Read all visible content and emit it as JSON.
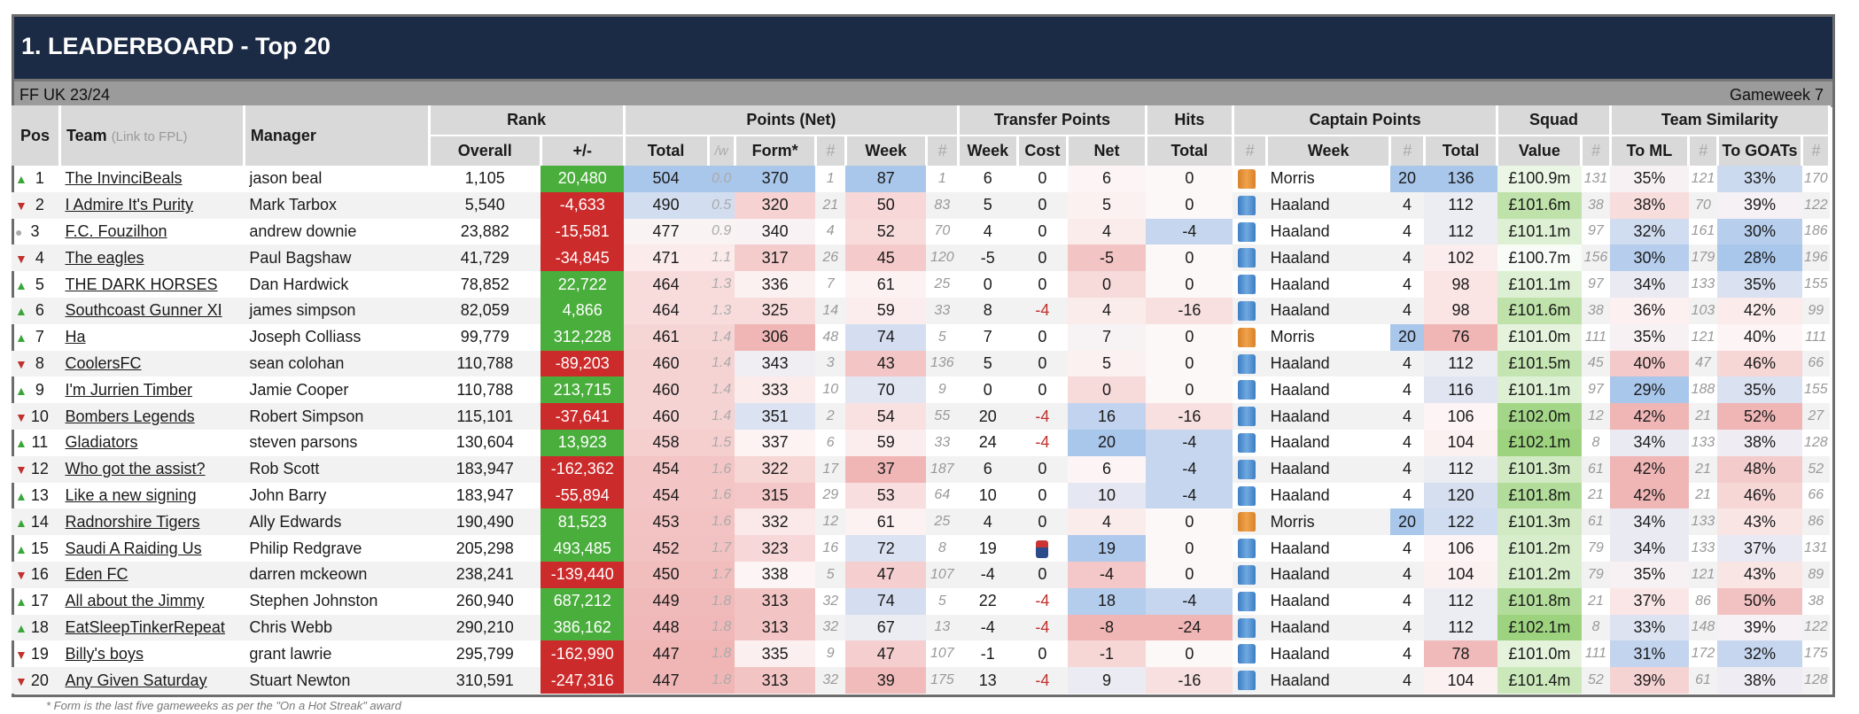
{
  "title": "1. LEADERBOARD - Top 20",
  "season": "FF UK 23/24",
  "gameweek": "Gameweek 7",
  "footnote": "* Form is the last five gameweeks as per the \"On a Hot Streak\" award",
  "headers": {
    "pos": "Pos",
    "team": "Team",
    "team_hint": "(Link to FPL)",
    "manager": "Manager",
    "rank": "Rank",
    "rank_overall": "Overall",
    "rank_change": "+/-",
    "points": "Points (Net)",
    "points_total": "Total",
    "points_pw": "/w",
    "points_form": "Form*",
    "hash": "#",
    "points_week": "Week",
    "transfer": "Transfer Points",
    "transfer_week": "Week",
    "transfer_cost": "Cost",
    "transfer_net": "Net",
    "hits": "Hits",
    "hits_total": "Total",
    "captain": "Captain Points",
    "captain_week": "Week",
    "captain_total": "Total",
    "squad": "Squad",
    "squad_value": "Value",
    "similarity": "Team Similarity",
    "sim_ml": "To ML",
    "sim_goats": "To GOATs"
  },
  "colors": {
    "title_bg": "#1c2b45",
    "rank_up": "#4aae3c",
    "rank_down": "#cc2b2b",
    "blue_high": "#a9c6eb",
    "red_high": "#f0b6b6"
  },
  "rows": [
    {
      "pos": "1",
      "dir": "up",
      "team": "The InvinciBeals",
      "manager": "jason beal",
      "overall": "1,105",
      "change": "20,480",
      "total": "504",
      "pw": "0.0",
      "form": "370",
      "form_rank": "1",
      "week": "87",
      "week_rank": "1",
      "t_week": "6",
      "t_cost": "0",
      "t_net": "6",
      "hits": "0",
      "cap_shirt": "orange",
      "cap": "Morris",
      "cap_week": "20",
      "cap_total": "136",
      "value": "£100.9m",
      "value_rank": "131",
      "ml": "35%",
      "ml_rank": "121",
      "goats": "33%",
      "goats_rank": "170"
    },
    {
      "pos": "2",
      "dir": "down",
      "team": "I Admire It's Purity",
      "manager": "Mark Tarbox",
      "overall": "5,540",
      "change": "-4,633",
      "total": "490",
      "pw": "0.5",
      "form": "320",
      "form_rank": "21",
      "week": "50",
      "week_rank": "83",
      "t_week": "5",
      "t_cost": "0",
      "t_net": "5",
      "hits": "0",
      "cap_shirt": "blue",
      "cap": "Haaland",
      "cap_week": "4",
      "cap_total": "112",
      "value": "£101.6m",
      "value_rank": "38",
      "ml": "38%",
      "ml_rank": "70",
      "goats": "39%",
      "goats_rank": "122"
    },
    {
      "pos": "3",
      "dir": "same",
      "team": "F.C. Fouzilhon",
      "manager": "andrew downie",
      "overall": "23,882",
      "change": "-15,581",
      "total": "477",
      "pw": "0.9",
      "form": "340",
      "form_rank": "4",
      "week": "52",
      "week_rank": "70",
      "t_week": "4",
      "t_cost": "0",
      "t_net": "4",
      "hits": "-4",
      "cap_shirt": "blue",
      "cap": "Haaland",
      "cap_week": "4",
      "cap_total": "112",
      "value": "£101.1m",
      "value_rank": "97",
      "ml": "32%",
      "ml_rank": "161",
      "goats": "30%",
      "goats_rank": "186"
    },
    {
      "pos": "4",
      "dir": "down",
      "team": "The eagles",
      "manager": "Paul Bagshaw",
      "overall": "41,729",
      "change": "-34,845",
      "total": "471",
      "pw": "1.1",
      "form": "317",
      "form_rank": "26",
      "week": "45",
      "week_rank": "120",
      "t_week": "-5",
      "t_cost": "0",
      "t_net": "-5",
      "hits": "0",
      "cap_shirt": "blue",
      "cap": "Haaland",
      "cap_week": "4",
      "cap_total": "102",
      "value": "£100.7m",
      "value_rank": "156",
      "ml": "30%",
      "ml_rank": "179",
      "goats": "28%",
      "goats_rank": "196"
    },
    {
      "pos": "5",
      "dir": "up",
      "team": "THE DARK HORSES",
      "manager": "Dan Hardwick",
      "overall": "78,852",
      "change": "22,722",
      "total": "464",
      "pw": "1.3",
      "form": "336",
      "form_rank": "7",
      "week": "61",
      "week_rank": "25",
      "t_week": "0",
      "t_cost": "0",
      "t_net": "0",
      "hits": "0",
      "cap_shirt": "blue",
      "cap": "Haaland",
      "cap_week": "4",
      "cap_total": "98",
      "value": "£101.1m",
      "value_rank": "97",
      "ml": "34%",
      "ml_rank": "133",
      "goats": "35%",
      "goats_rank": "155"
    },
    {
      "pos": "6",
      "dir": "up",
      "team": "Southcoast Gunner XI",
      "manager": "james simpson",
      "overall": "82,059",
      "change": "4,866",
      "total": "464",
      "pw": "1.3",
      "form": "325",
      "form_rank": "14",
      "week": "59",
      "week_rank": "33",
      "t_week": "8",
      "t_cost": "-4",
      "t_net": "4",
      "hits": "-16",
      "cap_shirt": "blue",
      "cap": "Haaland",
      "cap_week": "4",
      "cap_total": "98",
      "value": "£101.6m",
      "value_rank": "38",
      "ml": "36%",
      "ml_rank": "103",
      "goats": "42%",
      "goats_rank": "99"
    },
    {
      "pos": "7",
      "dir": "up",
      "team": "Ha",
      "manager": "Joseph Colliass",
      "overall": "99,779",
      "change": "312,228",
      "total": "461",
      "pw": "1.4",
      "form": "306",
      "form_rank": "48",
      "week": "74",
      "week_rank": "5",
      "t_week": "7",
      "t_cost": "0",
      "t_net": "7",
      "hits": "0",
      "cap_shirt": "orange",
      "cap": "Morris",
      "cap_week": "20",
      "cap_total": "76",
      "value": "£101.0m",
      "value_rank": "111",
      "ml": "35%",
      "ml_rank": "121",
      "goats": "40%",
      "goats_rank": "111"
    },
    {
      "pos": "8",
      "dir": "down",
      "team": "CoolersFC",
      "manager": "sean colohan",
      "overall": "110,788",
      "change": "-89,203",
      "total": "460",
      "pw": "1.4",
      "form": "343",
      "form_rank": "3",
      "week": "43",
      "week_rank": "136",
      "t_week": "5",
      "t_cost": "0",
      "t_net": "5",
      "hits": "0",
      "cap_shirt": "blue",
      "cap": "Haaland",
      "cap_week": "4",
      "cap_total": "112",
      "value": "£101.5m",
      "value_rank": "45",
      "ml": "40%",
      "ml_rank": "47",
      "goats": "46%",
      "goats_rank": "66"
    },
    {
      "pos": "9",
      "dir": "up",
      "team": "I'm Jurrien Timber",
      "manager": "Jamie Cooper",
      "overall": "110,788",
      "change": "213,715",
      "total": "460",
      "pw": "1.4",
      "form": "333",
      "form_rank": "10",
      "week": "70",
      "week_rank": "9",
      "t_week": "0",
      "t_cost": "0",
      "t_net": "0",
      "hits": "0",
      "cap_shirt": "blue",
      "cap": "Haaland",
      "cap_week": "4",
      "cap_total": "116",
      "value": "£101.1m",
      "value_rank": "97",
      "ml": "29%",
      "ml_rank": "188",
      "goats": "35%",
      "goats_rank": "155"
    },
    {
      "pos": "10",
      "dir": "down",
      "team": "Bombers Legends",
      "manager": "Robert Simpson",
      "overall": "115,101",
      "change": "-37,641",
      "total": "460",
      "pw": "1.4",
      "form": "351",
      "form_rank": "2",
      "week": "54",
      "week_rank": "55",
      "t_week": "20",
      "t_cost": "-4",
      "t_net": "16",
      "hits": "-16",
      "cap_shirt": "blue",
      "cap": "Haaland",
      "cap_week": "4",
      "cap_total": "106",
      "value": "£102.0m",
      "value_rank": "12",
      "ml": "42%",
      "ml_rank": "21",
      "goats": "52%",
      "goats_rank": "27"
    },
    {
      "pos": "11",
      "dir": "up",
      "team": "Gladiators",
      "manager": "steven parsons",
      "overall": "130,604",
      "change": "13,923",
      "total": "458",
      "pw": "1.5",
      "form": "337",
      "form_rank": "6",
      "week": "59",
      "week_rank": "33",
      "t_week": "24",
      "t_cost": "-4",
      "t_net": "20",
      "hits": "-4",
      "cap_shirt": "blue",
      "cap": "Haaland",
      "cap_week": "4",
      "cap_total": "104",
      "value": "£102.1m",
      "value_rank": "8",
      "ml": "34%",
      "ml_rank": "133",
      "goats": "38%",
      "goats_rank": "128"
    },
    {
      "pos": "12",
      "dir": "down",
      "team": "Who got the assist?",
      "manager": "Rob Scott",
      "overall": "183,947",
      "change": "-162,362",
      "total": "454",
      "pw": "1.6",
      "form": "322",
      "form_rank": "17",
      "week": "37",
      "week_rank": "187",
      "t_week": "6",
      "t_cost": "0",
      "t_net": "6",
      "hits": "-4",
      "cap_shirt": "blue",
      "cap": "Haaland",
      "cap_week": "4",
      "cap_total": "112",
      "value": "£101.3m",
      "value_rank": "61",
      "ml": "42%",
      "ml_rank": "21",
      "goats": "48%",
      "goats_rank": "52"
    },
    {
      "pos": "13",
      "dir": "up",
      "team": "Like a new signing",
      "manager": "John Barry",
      "overall": "183,947",
      "change": "-55,894",
      "total": "454",
      "pw": "1.6",
      "form": "315",
      "form_rank": "29",
      "week": "53",
      "week_rank": "64",
      "t_week": "10",
      "t_cost": "0",
      "t_net": "10",
      "hits": "-4",
      "cap_shirt": "blue",
      "cap": "Haaland",
      "cap_week": "4",
      "cap_total": "120",
      "value": "£101.8m",
      "value_rank": "21",
      "ml": "42%",
      "ml_rank": "21",
      "goats": "46%",
      "goats_rank": "66"
    },
    {
      "pos": "14",
      "dir": "up",
      "team": "Radnorshire Tigers",
      "manager": "Ally Edwards",
      "overall": "190,490",
      "change": "81,523",
      "total": "453",
      "pw": "1.6",
      "form": "332",
      "form_rank": "12",
      "week": "61",
      "week_rank": "25",
      "t_week": "4",
      "t_cost": "0",
      "t_net": "4",
      "hits": "0",
      "cap_shirt": "orange",
      "cap": "Morris",
      "cap_week": "20",
      "cap_total": "122",
      "value": "£101.3m",
      "value_rank": "61",
      "ml": "34%",
      "ml_rank": "133",
      "goats": "43%",
      "goats_rank": "86"
    },
    {
      "pos": "15",
      "dir": "up",
      "team": "Saudi A Raiding Us",
      "manager": "Philip Redgrave",
      "overall": "205,298",
      "change": "493,485",
      "total": "452",
      "pw": "1.7",
      "form": "323",
      "form_rank": "16",
      "week": "72",
      "week_rank": "8",
      "t_week": "19",
      "t_cost": "chip",
      "t_net": "19",
      "hits": "0",
      "cap_shirt": "blue",
      "cap": "Haaland",
      "cap_week": "4",
      "cap_total": "106",
      "value": "£101.2m",
      "value_rank": "79",
      "ml": "34%",
      "ml_rank": "133",
      "goats": "37%",
      "goats_rank": "131"
    },
    {
      "pos": "16",
      "dir": "down",
      "team": "Eden FC",
      "manager": "darren mckeown",
      "overall": "238,241",
      "change": "-139,440",
      "total": "450",
      "pw": "1.7",
      "form": "338",
      "form_rank": "5",
      "week": "47",
      "week_rank": "107",
      "t_week": "-4",
      "t_cost": "0",
      "t_net": "-4",
      "hits": "0",
      "cap_shirt": "blue",
      "cap": "Haaland",
      "cap_week": "4",
      "cap_total": "104",
      "value": "£101.2m",
      "value_rank": "79",
      "ml": "35%",
      "ml_rank": "121",
      "goats": "43%",
      "goats_rank": "89"
    },
    {
      "pos": "17",
      "dir": "up",
      "team": "All about the Jimmy",
      "manager": "Stephen Johnston",
      "overall": "260,940",
      "change": "687,212",
      "total": "449",
      "pw": "1.8",
      "form": "313",
      "form_rank": "32",
      "week": "74",
      "week_rank": "5",
      "t_week": "22",
      "t_cost": "-4",
      "t_net": "18",
      "hits": "-4",
      "cap_shirt": "blue",
      "cap": "Haaland",
      "cap_week": "4",
      "cap_total": "112",
      "value": "£101.8m",
      "value_rank": "21",
      "ml": "37%",
      "ml_rank": "86",
      "goats": "50%",
      "goats_rank": "38"
    },
    {
      "pos": "18",
      "dir": "up",
      "team": "EatSleepTinkerRepeat",
      "manager": "Chris Webb",
      "overall": "290,210",
      "change": "386,162",
      "total": "448",
      "pw": "1.8",
      "form": "313",
      "form_rank": "32",
      "week": "67",
      "week_rank": "13",
      "t_week": "-4",
      "t_cost": "-4",
      "t_net": "-8",
      "hits": "-24",
      "cap_shirt": "blue",
      "cap": "Haaland",
      "cap_week": "4",
      "cap_total": "112",
      "value": "£102.1m",
      "value_rank": "8",
      "ml": "33%",
      "ml_rank": "148",
      "goats": "39%",
      "goats_rank": "122"
    },
    {
      "pos": "19",
      "dir": "down",
      "team": "Billy's boys",
      "manager": "grant lawrie",
      "overall": "295,799",
      "change": "-162,990",
      "total": "447",
      "pw": "1.8",
      "form": "335",
      "form_rank": "9",
      "week": "47",
      "week_rank": "107",
      "t_week": "-1",
      "t_cost": "0",
      "t_net": "-1",
      "hits": "0",
      "cap_shirt": "blue",
      "cap": "Haaland",
      "cap_week": "4",
      "cap_total": "78",
      "value": "£101.0m",
      "value_rank": "111",
      "ml": "31%",
      "ml_rank": "172",
      "goats": "32%",
      "goats_rank": "175"
    },
    {
      "pos": "20",
      "dir": "down",
      "team": "Any Given Saturday",
      "manager": "Stuart Newton",
      "overall": "310,591",
      "change": "-247,316",
      "total": "447",
      "pw": "1.8",
      "form": "313",
      "form_rank": "32",
      "week": "39",
      "week_rank": "175",
      "t_week": "13",
      "t_cost": "-4",
      "t_net": "9",
      "hits": "-16",
      "cap_shirt": "blue",
      "cap": "Haaland",
      "cap_week": "4",
      "cap_total": "104",
      "value": "£101.4m",
      "value_rank": "52",
      "ml": "39%",
      "ml_rank": "61",
      "goats": "38%",
      "goats_rank": "128"
    }
  ]
}
